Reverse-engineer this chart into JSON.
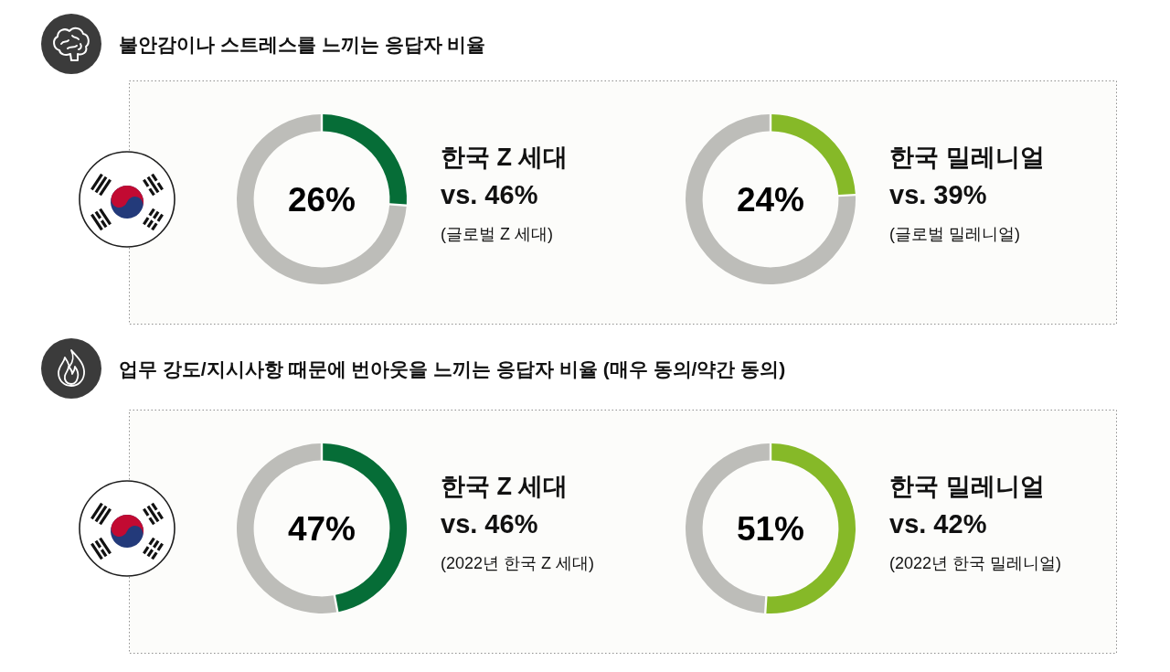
{
  "chart_data": [
    {
      "type": "donut",
      "title": "불안감이나 스트레스를 느끼는 응답자 비율",
      "categories": [
        null,
        null
      ],
      "values": [
        26,
        74
      ],
      "colors": [
        "#066d37",
        "#bdbdb9"
      ],
      "annotations": [
        "26%",
        "한국 Z 세대",
        "vs. 46%",
        "(글로벌 Z 세대)"
      ]
    },
    {
      "type": "donut",
      "categories": [
        null,
        null
      ],
      "values": [
        24,
        76
      ],
      "colors": [
        "#86b928",
        "#bdbdb9"
      ],
      "annotations": [
        "24%",
        "한국 밀레니얼",
        "vs. 39%",
        "(글로벌 밀레니얼)"
      ]
    },
    {
      "type": "donut",
      "title": "업무 강도/지시사항 때문에 번아웃을 느끼는 응답자 비율 (매우 동의/약간 동의)",
      "categories": [
        null,
        null
      ],
      "values": [
        47,
        53
      ],
      "colors": [
        "#066d37",
        "#bdbdb9"
      ],
      "annotations": [
        "47%",
        "한국 Z 세대",
        "vs. 46%",
        "(2022년 한국 Z 세대)"
      ]
    },
    {
      "type": "donut",
      "categories": [
        null,
        null
      ],
      "values": [
        51,
        49
      ],
      "colors": [
        "#86b928",
        "#bdbdb9"
      ],
      "annotations": [
        "51%",
        "한국 밀레니얼",
        "vs. 42%",
        "(2022년 한국 밀레니얼)"
      ]
    }
  ]
}
